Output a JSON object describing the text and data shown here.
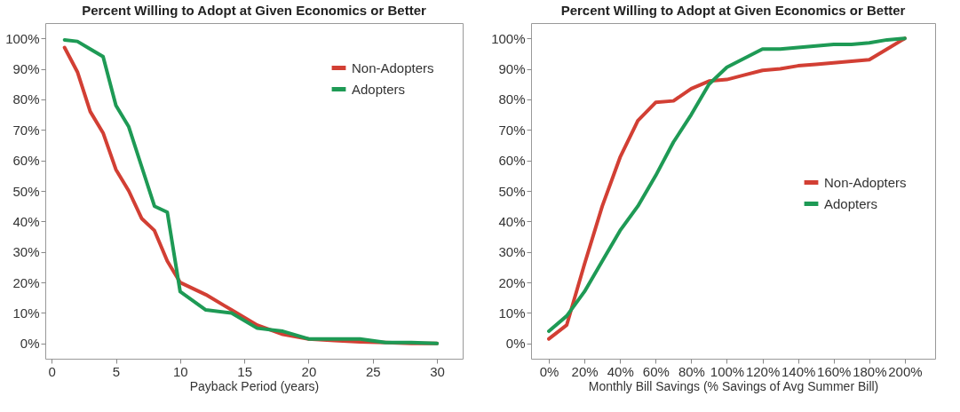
{
  "chart_data": [
    {
      "type": "line",
      "title": "Percent Willing to Adopt at Given Economics or Better",
      "xlabel": "Payback Period (years)",
      "xlim": [
        -0.5,
        32
      ],
      "xticks": [
        0,
        5,
        10,
        15,
        20,
        25,
        30
      ],
      "ylim": [
        -5,
        105
      ],
      "yticks": [
        {
          "value": 0,
          "label": "0%"
        },
        {
          "value": 10,
          "label": "10%"
        },
        {
          "value": 20,
          "label": "20%"
        },
        {
          "value": 30,
          "label": "30%"
        },
        {
          "value": 40,
          "label": "40%"
        },
        {
          "value": 50,
          "label": "50%"
        },
        {
          "value": 60,
          "label": "60%"
        },
        {
          "value": 70,
          "label": "70%"
        },
        {
          "value": 80,
          "label": "80%"
        },
        {
          "value": 90,
          "label": "90%"
        },
        {
          "value": 100,
          "label": "100%"
        }
      ],
      "grid": false,
      "legend": "top right",
      "line_style": "solid",
      "marker": "none",
      "x": [
        1,
        2,
        3,
        4,
        5,
        6,
        7,
        8,
        9,
        10,
        12,
        14,
        16,
        18,
        20,
        22,
        24,
        26,
        28,
        30
      ],
      "series": [
        {
          "name": "Non-Adopters",
          "color": "#d23f34",
          "values": [
            97,
            89,
            76,
            69,
            57,
            50,
            41,
            37,
            27,
            20,
            16,
            11,
            6,
            3,
            1.5,
            1,
            0.5,
            0.3,
            0,
            0
          ]
        },
        {
          "name": "Adopters",
          "color": "#1e9a55",
          "values": [
            99.5,
            99,
            96.5,
            94,
            78,
            71,
            58,
            45,
            43,
            17,
            11,
            10,
            5,
            4,
            1.5,
            1.5,
            1.5,
            0.3,
            0.3,
            0
          ]
        }
      ]
    },
    {
      "type": "line",
      "title": "Percent Willing to Adopt at Given Economics or Better",
      "xlabel": "Monthly Bill Savings (% Savings of Avg Summer Bill)",
      "xlim": [
        -10,
        217
      ],
      "xticks": [
        {
          "value": 0,
          "label": "0%"
        },
        {
          "value": 20,
          "label": "20%"
        },
        {
          "value": 40,
          "label": "40%"
        },
        {
          "value": 60,
          "label": "60%"
        },
        {
          "value": 80,
          "label": "80%"
        },
        {
          "value": 100,
          "label": "100%"
        },
        {
          "value": 120,
          "label": "120%"
        },
        {
          "value": 140,
          "label": "140%"
        },
        {
          "value": 160,
          "label": "160%"
        },
        {
          "value": 180,
          "label": "180%"
        },
        {
          "value": 200,
          "label": "200%"
        }
      ],
      "ylim": [
        -5,
        105
      ],
      "yticks": [
        {
          "value": 0,
          "label": "0%"
        },
        {
          "value": 10,
          "label": "10%"
        },
        {
          "value": 20,
          "label": "20%"
        },
        {
          "value": 30,
          "label": "30%"
        },
        {
          "value": 40,
          "label": "40%"
        },
        {
          "value": 50,
          "label": "50%"
        },
        {
          "value": 60,
          "label": "60%"
        },
        {
          "value": 70,
          "label": "70%"
        },
        {
          "value": 80,
          "label": "80%"
        },
        {
          "value": 90,
          "label": "90%"
        },
        {
          "value": 100,
          "label": "100%"
        }
      ],
      "grid": false,
      "legend": "right",
      "line_style": "solid",
      "marker": "none",
      "x": [
        0,
        10,
        20,
        30,
        40,
        50,
        60,
        70,
        80,
        90,
        100,
        110,
        120,
        130,
        140,
        150,
        160,
        170,
        180,
        190,
        200
      ],
      "series": [
        {
          "name": "Non-Adopters",
          "color": "#d23f34",
          "values": [
            1.5,
            6,
            26,
            45,
            61,
            73,
            79,
            79.5,
            83.5,
            86,
            86.5,
            88,
            89.5,
            90,
            91,
            91.5,
            92,
            92.5,
            93,
            96.5,
            100
          ]
        },
        {
          "name": "Adopters",
          "color": "#1e9a55",
          "values": [
            4,
            9,
            17,
            27,
            37,
            45,
            55,
            66,
            75,
            85,
            90.5,
            93.5,
            96.5,
            96.5,
            97,
            97.5,
            98,
            98,
            98.5,
            99.5,
            100
          ]
        }
      ]
    }
  ]
}
